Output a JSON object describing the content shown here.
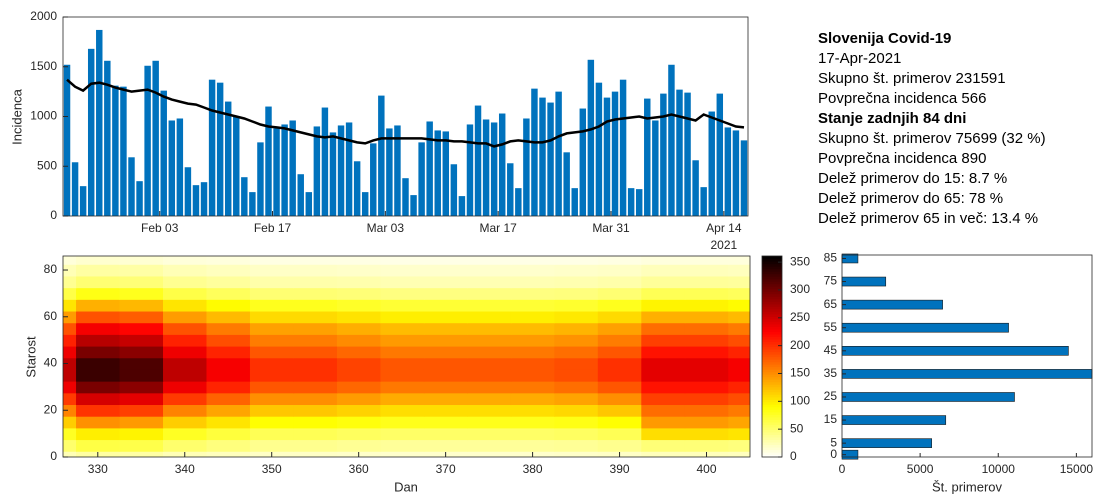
{
  "chart_data": [
    {
      "type": "bar",
      "ylabel": "Incidenca",
      "x": [
        "2021-01-22",
        "2021-01-23",
        "2021-01-24",
        "2021-01-25",
        "2021-01-26",
        "2021-01-27",
        "2021-01-28",
        "2021-01-29",
        "2021-01-30",
        "2021-01-31",
        "2021-02-01",
        "2021-02-02",
        "2021-02-03",
        "2021-02-04",
        "2021-02-05",
        "2021-02-06",
        "2021-02-07",
        "2021-02-08",
        "2021-02-09",
        "2021-02-10",
        "2021-02-11",
        "2021-02-12",
        "2021-02-13",
        "2021-02-14",
        "2021-02-15",
        "2021-02-16",
        "2021-02-17",
        "2021-02-18",
        "2021-02-19",
        "2021-02-20",
        "2021-02-21",
        "2021-02-22",
        "2021-02-23",
        "2021-02-24",
        "2021-02-25",
        "2021-02-26",
        "2021-02-27",
        "2021-02-28",
        "2021-03-01",
        "2021-03-02",
        "2021-03-03",
        "2021-03-04",
        "2021-03-05",
        "2021-03-06",
        "2021-03-07",
        "2021-03-08",
        "2021-03-09",
        "2021-03-10",
        "2021-03-11",
        "2021-03-12",
        "2021-03-13",
        "2021-03-14",
        "2021-03-15",
        "2021-03-16",
        "2021-03-17",
        "2021-03-18",
        "2021-03-19",
        "2021-03-20",
        "2021-03-21",
        "2021-03-22",
        "2021-03-23",
        "2021-03-24",
        "2021-03-25",
        "2021-03-26",
        "2021-03-27",
        "2021-03-28",
        "2021-03-29",
        "2021-03-30",
        "2021-03-31",
        "2021-04-01",
        "2021-04-02",
        "2021-04-03",
        "2021-04-04",
        "2021-04-05",
        "2021-04-06",
        "2021-04-07",
        "2021-04-08",
        "2021-04-09",
        "2021-04-10",
        "2021-04-11",
        "2021-04-12",
        "2021-04-13",
        "2021-04-14",
        "2021-04-15",
        "2021-04-16"
      ],
      "series": [
        {
          "type": "bar",
          "color": "#0072BD",
          "values": [
            1520,
            540,
            300,
            1680,
            1870,
            1560,
            1310,
            1300,
            590,
            350,
            1510,
            1560,
            1260,
            960,
            980,
            490,
            310,
            340,
            1370,
            1340,
            1150,
            1000,
            390,
            240,
            740,
            1100,
            880,
            920,
            960,
            420,
            240,
            900,
            1090,
            840,
            910,
            940,
            550,
            240,
            730,
            1210,
            880,
            910,
            380,
            210,
            740,
            950,
            860,
            850,
            520,
            200,
            920,
            1110,
            970,
            940,
            1030,
            530,
            280,
            980,
            1280,
            1190,
            1140,
            1250,
            640,
            280,
            1080,
            1570,
            1340,
            1190,
            1250,
            1370,
            280,
            270,
            1180,
            960,
            1230,
            1520,
            1270,
            1240,
            560,
            290,
            1050,
            1230,
            890,
            860,
            760
          ]
        },
        {
          "type": "line",
          "color": "#000000",
          "values": [
            1370,
            1300,
            1260,
            1330,
            1340,
            1320,
            1290,
            1270,
            1250,
            1260,
            1270,
            1240,
            1200,
            1170,
            1150,
            1130,
            1120,
            1090,
            1060,
            1040,
            1020,
            1000,
            980,
            950,
            920,
            900,
            890,
            880,
            860,
            840,
            820,
            800,
            790,
            800,
            780,
            760,
            740,
            730,
            760,
            780,
            780,
            780,
            780,
            780,
            780,
            770,
            760,
            760,
            750,
            750,
            740,
            730,
            730,
            700,
            720,
            750,
            760,
            750,
            740,
            740,
            760,
            800,
            830,
            840,
            850,
            870,
            900,
            950,
            970,
            980,
            990,
            1000,
            980,
            990,
            1000,
            1020,
            1000,
            980,
            960,
            1020,
            990,
            960,
            930,
            900,
            890
          ]
        }
      ],
      "xlim": [
        "2021-01-22",
        "2021-04-17"
      ],
      "xticks": [
        {
          "value": "2021-02-03",
          "label": "Feb 03"
        },
        {
          "value": "2021-02-17",
          "label": "Feb 17"
        },
        {
          "value": "2021-03-03",
          "label": "Mar 03"
        },
        {
          "value": "2021-03-17",
          "label": "Mar 17"
        },
        {
          "value": "2021-03-31",
          "label": "Mar 31"
        },
        {
          "value": "2021-04-14",
          "label": "Apr 14"
        }
      ],
      "xtick_secondary": "2021",
      "ylim": [
        0,
        2000
      ],
      "yticks": [
        0,
        500,
        1000,
        1500,
        2000
      ],
      "annotations": [
        "Slovenija Covid-19",
        "17-Apr-2021",
        "Skupno št. primerov 231591",
        "Povprečna incidenca 566",
        "Stanje zadnjih 84 dni",
        "Skupno št. primerov 75699 (32 %)",
        "Povprečna incidenca 890",
        "Delež primerov do 15: 8.7 %",
        "Delež primerov do 65: 78 %",
        "Delež primerov 65 in več: 13.4 %"
      ]
    },
    {
      "type": "heatmap",
      "xlabel": "Dan",
      "ylabel": "Starost",
      "colormap": "hot",
      "colormap_reversed": true,
      "x": [
        325,
        330,
        335,
        340,
        345,
        350,
        355,
        360,
        365,
        370,
        375,
        380,
        385,
        390,
        395,
        400,
        405,
        410
      ],
      "y": [
        0,
        5,
        10,
        15,
        20,
        25,
        30,
        35,
        40,
        45,
        50,
        55,
        60,
        65,
        70,
        75,
        80,
        85
      ],
      "z": [
        [
          26,
          33,
          32,
          26,
          23,
          20,
          20,
          19,
          18,
          18,
          18,
          18,
          19,
          20,
          24,
          24,
          23,
          22
        ],
        [
          52,
          66,
          64,
          52,
          46,
          40,
          40,
          38,
          36,
          36,
          36,
          36,
          37,
          40,
          48,
          48,
          46,
          44
        ],
        [
          78,
          99,
          96,
          78,
          69,
          60,
          60,
          57,
          54,
          54,
          54,
          54,
          56,
          60,
          108,
          108,
          104,
          99
        ],
        [
          117,
          149,
          144,
          117,
          104,
          90,
          90,
          86,
          81,
          81,
          81,
          81,
          83,
          90,
          144,
          144,
          138,
          132
        ],
        [
          156,
          198,
          192,
          156,
          138,
          120,
          120,
          114,
          108,
          108,
          108,
          108,
          111,
          120,
          168,
          168,
          161,
          154
        ],
        [
          195,
          248,
          240,
          195,
          173,
          150,
          150,
          143,
          135,
          135,
          135,
          135,
          139,
          150,
          192,
          192,
          184,
          176
        ],
        [
          234,
          297,
          288,
          234,
          207,
          180,
          180,
          171,
          162,
          162,
          162,
          162,
          167,
          180,
          216,
          216,
          207,
          198
        ],
        [
          260,
          330,
          320,
          260,
          230,
          200,
          200,
          190,
          180,
          180,
          180,
          180,
          185,
          200,
          240,
          240,
          230,
          220
        ],
        [
          260,
          330,
          320,
          260,
          230,
          200,
          200,
          190,
          180,
          180,
          180,
          180,
          185,
          200,
          240,
          240,
          230,
          220
        ],
        [
          234,
          297,
          288,
          234,
          207,
          180,
          180,
          171,
          162,
          162,
          162,
          162,
          167,
          180,
          216,
          216,
          207,
          198
        ],
        [
          208,
          264,
          256,
          208,
          184,
          160,
          160,
          152,
          144,
          144,
          144,
          144,
          148,
          160,
          192,
          192,
          184,
          176
        ],
        [
          182,
          231,
          224,
          182,
          161,
          140,
          140,
          133,
          126,
          126,
          126,
          126,
          130,
          140,
          168,
          168,
          161,
          154
        ],
        [
          143,
          182,
          176,
          143,
          127,
          110,
          110,
          105,
          99,
          99,
          99,
          99,
          102,
          110,
          132,
          132,
          127,
          121
        ],
        [
          104,
          132,
          128,
          104,
          92,
          80,
          80,
          76,
          72,
          72,
          72,
          72,
          74,
          80,
          96,
          96,
          92,
          88
        ],
        [
          65,
          83,
          80,
          65,
          58,
          50,
          50,
          48,
          45,
          45,
          45,
          45,
          46,
          50,
          60,
          60,
          58,
          55
        ],
        [
          39,
          50,
          48,
          39,
          35,
          30,
          30,
          29,
          27,
          27,
          27,
          27,
          28,
          30,
          36,
          36,
          35,
          33
        ],
        [
          26,
          33,
          32,
          26,
          23,
          20,
          20,
          19,
          18,
          18,
          18,
          18,
          19,
          20,
          24,
          24,
          23,
          22
        ],
        [
          13,
          17,
          16,
          13,
          12,
          10,
          10,
          10,
          9,
          9,
          9,
          9,
          9,
          10,
          12,
          12,
          12,
          11
        ]
      ],
      "xlim": [
        326,
        405
      ],
      "xticks": [
        330,
        340,
        350,
        360,
        370,
        380,
        390,
        400
      ],
      "ylim": [
        0,
        86
      ],
      "yticks": [
        0,
        20,
        40,
        60,
        80
      ],
      "zlim": [
        0,
        361
      ],
      "zticks": [
        0,
        50,
        100,
        150,
        200,
        250,
        300,
        350
      ]
    },
    {
      "type": "barh",
      "xlabel": "Št. primerov",
      "color": "#0072BD",
      "y": [
        0,
        5,
        15,
        25,
        35,
        45,
        55,
        65,
        75,
        85
      ],
      "values": [
        1020,
        5740,
        6640,
        11040,
        16000,
        14490,
        10660,
        6440,
        2800,
        1020
      ],
      "xlim": [
        0,
        16000
      ],
      "xticks": [
        0,
        5000,
        10000,
        15000
      ],
      "ylim": [
        -1,
        86.5
      ],
      "yticks": [
        0,
        5,
        15,
        25,
        35,
        45,
        55,
        65,
        75,
        85
      ]
    }
  ]
}
